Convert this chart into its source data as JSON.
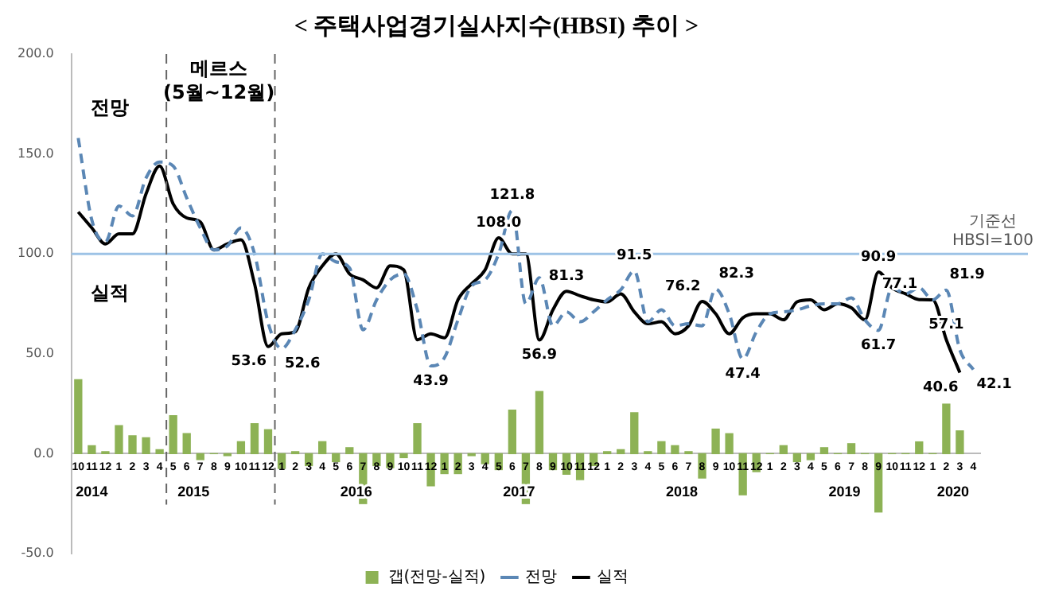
{
  "chart_data": {
    "type": "line",
    "title": "< 주택사업경기실사지수(HBSI) 추이 >",
    "x": [
      "2014-10",
      "2014-11",
      "2014-12",
      "2015-01",
      "2015-02",
      "2015-03",
      "2015-04",
      "2015-05",
      "2015-06",
      "2015-07",
      "2015-08",
      "2015-09",
      "2015-10",
      "2015-11",
      "2015-12",
      "2016-01",
      "2016-02",
      "2016-03",
      "2016-04",
      "2016-05",
      "2016-06",
      "2016-07",
      "2016-08",
      "2016-09",
      "2016-10",
      "2016-11",
      "2016-12",
      "2017-01",
      "2017-02",
      "2017-03",
      "2017-04",
      "2017-05",
      "2017-06",
      "2017-07",
      "2017-08",
      "2017-09",
      "2017-10",
      "2017-11",
      "2017-12",
      "2018-01",
      "2018-02",
      "2018-03",
      "2018-04",
      "2018-05",
      "2018-06",
      "2018-07",
      "2018-08",
      "2018-09",
      "2018-10",
      "2018-11",
      "2018-12",
      "2019-01",
      "2019-02",
      "2019-03",
      "2019-04",
      "2019-05",
      "2019-06",
      "2019-07",
      "2019-08",
      "2019-09",
      "2019-10",
      "2019-11",
      "2019-12",
      "2020-01",
      "2020-02",
      "2020-03",
      "2020-04"
    ],
    "xlim": [
      "2014-09-16",
      "2020-04-16"
    ],
    "xticks": [
      {
        "value": "2014-10",
        "label": "10"
      },
      {
        "value": "2014-11",
        "label": "11"
      },
      {
        "value": "2014-12",
        "label": "12"
      },
      {
        "value": "2015-01",
        "label": "1"
      },
      {
        "value": "2015-02",
        "label": "2"
      },
      {
        "value": "2015-03",
        "label": "3"
      },
      {
        "value": "2015-04",
        "label": "4"
      },
      {
        "value": "2015-05",
        "label": "5"
      },
      {
        "value": "2015-06",
        "label": "6"
      },
      {
        "value": "2015-07",
        "label": "7"
      },
      {
        "value": "2015-08",
        "label": "8"
      },
      {
        "value": "2015-09",
        "label": "9"
      },
      {
        "value": "2015-10",
        "label": "10"
      },
      {
        "value": "2015-11",
        "label": "11"
      },
      {
        "value": "2015-12",
        "label": "12"
      },
      {
        "value": "2016-01",
        "label": "1"
      },
      {
        "value": "2016-02",
        "label": "2"
      },
      {
        "value": "2016-03",
        "label": "3"
      },
      {
        "value": "2016-04",
        "label": "4"
      },
      {
        "value": "2016-05",
        "label": "5"
      },
      {
        "value": "2016-06",
        "label": "6"
      },
      {
        "value": "2016-07",
        "label": "7"
      },
      {
        "value": "2016-08",
        "label": "8"
      },
      {
        "value": "2016-09",
        "label": "9"
      },
      {
        "value": "2016-10",
        "label": "10"
      },
      {
        "value": "2016-11",
        "label": "11"
      },
      {
        "value": "2016-12",
        "label": "12"
      },
      {
        "value": "2017-01",
        "label": "1"
      },
      {
        "value": "2017-02",
        "label": "2"
      },
      {
        "value": "2017-03",
        "label": "3"
      },
      {
        "value": "2017-04",
        "label": "4"
      },
      {
        "value": "2017-05",
        "label": "5"
      },
      {
        "value": "2017-06",
        "label": "6"
      },
      {
        "value": "2017-07",
        "label": "7"
      },
      {
        "value": "2017-08",
        "label": "8"
      },
      {
        "value": "2017-09",
        "label": "9"
      },
      {
        "value": "2017-10",
        "label": "10"
      },
      {
        "value": "2017-11",
        "label": "11"
      },
      {
        "value": "2017-12",
        "label": "12"
      },
      {
        "value": "2018-01",
        "label": "1"
      },
      {
        "value": "2018-02",
        "label": "2"
      },
      {
        "value": "2018-03",
        "label": "3"
      },
      {
        "value": "2018-04",
        "label": "4"
      },
      {
        "value": "2018-05",
        "label": "5"
      },
      {
        "value": "2018-06",
        "label": "6"
      },
      {
        "value": "2018-07",
        "label": "7"
      },
      {
        "value": "2018-08",
        "label": "8"
      },
      {
        "value": "2018-09",
        "label": "9"
      },
      {
        "value": "2018-10",
        "label": "10"
      },
      {
        "value": "2018-11",
        "label": "11"
      },
      {
        "value": "2018-12",
        "label": "12"
      },
      {
        "value": "2019-01",
        "label": "1"
      },
      {
        "value": "2019-02",
        "label": "2"
      },
      {
        "value": "2019-03",
        "label": "3"
      },
      {
        "value": "2019-04",
        "label": "4"
      },
      {
        "value": "2019-05",
        "label": "5"
      },
      {
        "value": "2019-06",
        "label": "6"
      },
      {
        "value": "2019-07",
        "label": "7"
      },
      {
        "value": "2019-08",
        "label": "8"
      },
      {
        "value": "2019-09",
        "label": "9"
      },
      {
        "value": "2019-10",
        "label": "10"
      },
      {
        "value": "2019-11",
        "label": "11"
      },
      {
        "value": "2019-12",
        "label": "12"
      },
      {
        "value": "2020-01",
        "label": "1"
      },
      {
        "value": "2020-02",
        "label": "2"
      },
      {
        "value": "2020-03",
        "label": "3"
      },
      {
        "value": "2020-04",
        "label": "4"
      }
    ],
    "series": [
      {
        "name": "갭(전망-실적)",
        "type": "bar",
        "color": "#8db255",
        "values": [
          37,
          4,
          1,
          14,
          9,
          8,
          2,
          19,
          10,
          -3,
          0,
          -1,
          6,
          15,
          12,
          -7.4,
          1,
          -6,
          6,
          -4,
          3,
          -25,
          -6,
          -7,
          -2,
          15,
          -16.1,
          -10,
          -10,
          -1,
          -5,
          -8,
          21.8,
          -25,
          31.1,
          -8,
          -10.3,
          -13,
          -6,
          1,
          2,
          20.5,
          1,
          6,
          4,
          1,
          -12.2,
          12.3,
          10,
          -20.6,
          -9,
          0,
          4,
          -4,
          -3,
          3,
          0,
          5,
          0,
          -29.2,
          0,
          0,
          5.9,
          0,
          24.8,
          11.4,
          null
        ]
      },
      {
        "name": "전망",
        "color": "#5b87b5",
        "line_style": "dashed",
        "values": [
          158,
          117,
          106,
          124,
          119,
          138,
          146,
          144,
          128,
          113,
          102,
          104,
          113,
          100,
          65.6,
          52.6,
          62,
          77,
          100,
          96,
          93,
          62,
          77,
          87,
          90,
          72,
          43.9,
          48,
          67,
          84,
          87,
          100,
          121.8,
          75,
          88,
          64,
          71,
          66,
          71,
          77,
          82,
          91.5,
          66,
          72,
          64,
          65,
          64,
          82.3,
          70,
          47.4,
          61,
          70,
          71,
          72,
          74,
          75,
          75,
          78,
          67,
          61.7,
          83,
          80,
          83,
          77,
          81.9,
          52,
          42.1
        ],
        "value_labels": [
          null,
          null,
          null,
          null,
          null,
          null,
          null,
          null,
          null,
          null,
          null,
          null,
          null,
          null,
          null,
          "52.6",
          null,
          null,
          null,
          null,
          null,
          null,
          null,
          null,
          null,
          null,
          "43.9",
          null,
          null,
          null,
          null,
          null,
          "121.8",
          null,
          null,
          null,
          null,
          null,
          null,
          null,
          null,
          "91.5",
          null,
          null,
          null,
          null,
          null,
          "82.3",
          null,
          "47.4",
          null,
          null,
          null,
          null,
          null,
          null,
          null,
          null,
          null,
          "61.7",
          null,
          null,
          null,
          null,
          "81.9",
          null,
          "42.1"
        ]
      },
      {
        "name": "실적",
        "color": "#000000",
        "line_style": "solid",
        "values": [
          121,
          113,
          105,
          110,
          110,
          130,
          144,
          125,
          118,
          116,
          102,
          105,
          107,
          85,
          53.6,
          60,
          61,
          83,
          94,
          100,
          90,
          87,
          83,
          94,
          92,
          57,
          60,
          58,
          77,
          85,
          92,
          108.0,
          100,
          100,
          56.9,
          72,
          81.3,
          79,
          77,
          76,
          80,
          71,
          65,
          66,
          60,
          64,
          76.2,
          70,
          60,
          68,
          70,
          70,
          67,
          76,
          77,
          72,
          75,
          73,
          67,
          90.9,
          83,
          80,
          77.1,
          77,
          57.1,
          40.6,
          null
        ],
        "value_labels": [
          null,
          null,
          null,
          null,
          null,
          null,
          null,
          null,
          null,
          null,
          null,
          null,
          null,
          null,
          "53.6",
          null,
          null,
          null,
          null,
          null,
          null,
          null,
          null,
          null,
          null,
          null,
          null,
          null,
          null,
          null,
          null,
          "108.0",
          null,
          null,
          "56.9",
          null,
          "81.3",
          null,
          null,
          null,
          null,
          null,
          null,
          null,
          null,
          null,
          "76.2",
          null,
          null,
          null,
          null,
          null,
          null,
          null,
          null,
          null,
          null,
          null,
          null,
          "90.9",
          null,
          null,
          "77.1",
          null,
          "57.1",
          "40.6",
          null
        ]
      }
    ],
    "ylim": [
      -50,
      200
    ],
    "yticks": [
      {
        "value": -50,
        "label": "-50.0"
      },
      {
        "value": 0,
        "label": "0.0"
      },
      {
        "value": 50,
        "label": "50.0"
      },
      {
        "value": 100,
        "label": "100.0"
      },
      {
        "value": 150,
        "label": "150.0"
      },
      {
        "value": 200,
        "label": "200.0"
      }
    ],
    "ref_lines": [
      {
        "axis": "y",
        "value": 100,
        "label": "기준선 HBSI=100",
        "color": "#9dc3e6"
      },
      {
        "axis": "x",
        "value": "2015-04-16",
        "label": "메르스 (5월~12월)",
        "color": "#666666",
        "line_style": "dashed"
      },
      {
        "axis": "x",
        "value": "2015-12-16",
        "color": "#666666",
        "line_style": "dashed"
      }
    ],
    "annotations": [
      "전망",
      "실적",
      "2014",
      "2015",
      "2016",
      "2017",
      "2018",
      "2019",
      "2020"
    ],
    "marker": "none",
    "legend": "bottom"
  }
}
